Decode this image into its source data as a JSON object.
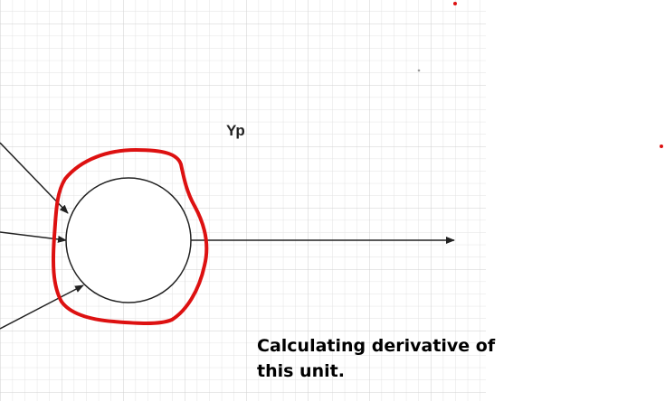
{
  "diagram": {
    "output_label": "Yp",
    "caption": {
      "line1": "Calculating derivative of",
      "line2": "this unit."
    },
    "colors": {
      "grid": "#dcdcdc",
      "grid_major": "#c8c8c8",
      "stroke": "#222222",
      "highlight": "#dd1111",
      "background": "#ffffff"
    }
  }
}
